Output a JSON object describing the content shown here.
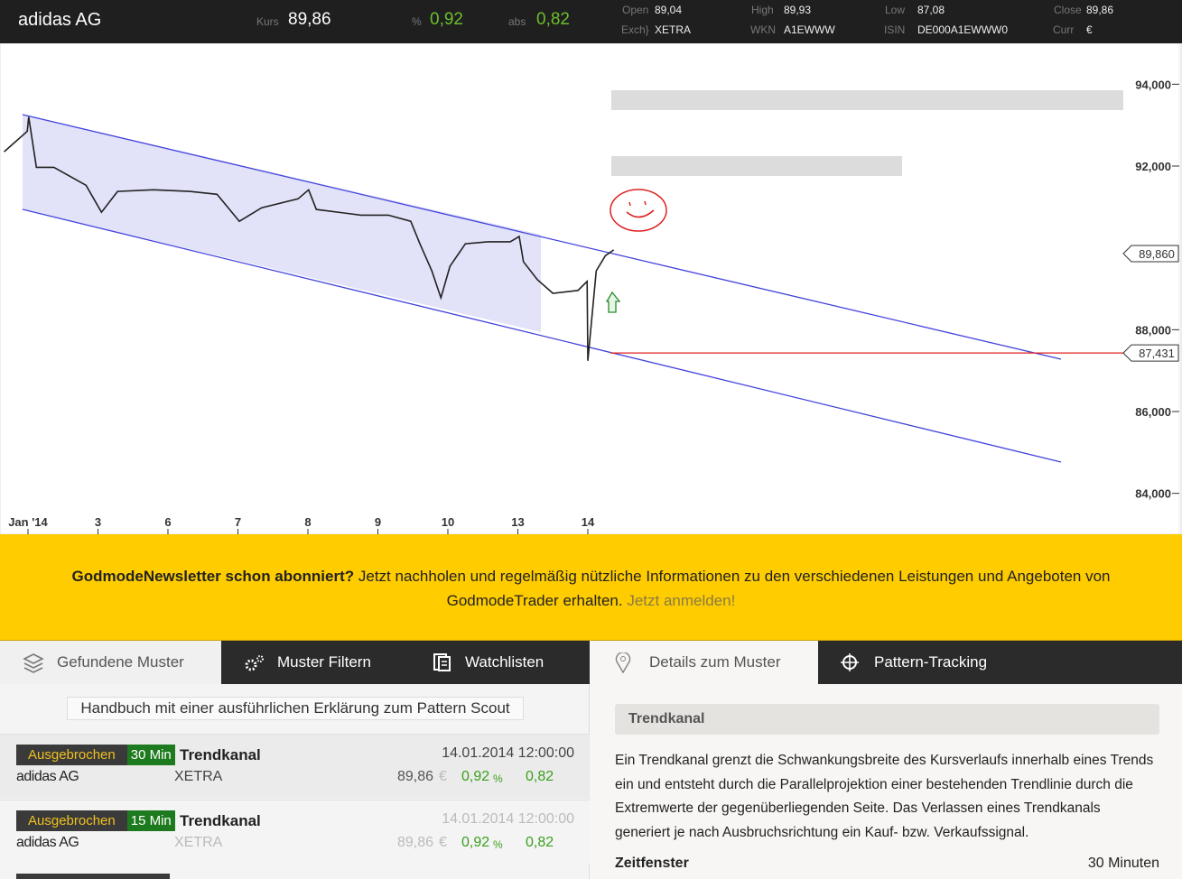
{
  "header": {
    "name": "adidas AG",
    "quote": [
      {
        "label": "Kurs",
        "value": "89,86"
      },
      {
        "label": "%",
        "value": "0,92"
      },
      {
        "label": "abs",
        "value": "0,82"
      }
    ],
    "fields": [
      {
        "label": "Open",
        "value": "89,04"
      },
      {
        "label": "Exch}",
        "value": "XETRA"
      },
      {
        "label": "High",
        "value": "89,93"
      },
      {
        "label": "WKN",
        "value": "A1EWWW"
      },
      {
        "label": "Low",
        "value": "87,08"
      },
      {
        "label": "ISIN",
        "value": "DE000A1EWWW0"
      },
      {
        "label": "Close",
        "value": "89,86"
      },
      {
        "label": "Curr",
        "value": "€"
      }
    ]
  },
  "chart_data": {
    "type": "line",
    "color": "#222222",
    "x": [
      -0.34,
      -0.01,
      0.01,
      0.12,
      0.37,
      0.83,
      1.05,
      1.28,
      1.79,
      2.31,
      2.7,
      3.02,
      3.34,
      3.86,
      4.01,
      4.12,
      4.76,
      5.15,
      5.47,
      5.6,
      5.77,
      5.9,
      6.03,
      6.25,
      6.57,
      6.89,
      7.02,
      7.08,
      7.28,
      7.5,
      7.86,
      7.99,
      8.0,
      8.12,
      8.25,
      8.37
    ],
    "values": [
      92.35,
      92.85,
      93.2,
      91.97,
      91.97,
      91.53,
      90.87,
      91.38,
      91.42,
      91.38,
      91.31,
      90.65,
      90.98,
      91.2,
      91.42,
      90.94,
      90.8,
      90.8,
      90.65,
      90.1,
      89.44,
      88.78,
      89.55,
      90.1,
      90.15,
      90.15,
      90.28,
      89.66,
      89.22,
      88.89,
      88.96,
      89.18,
      87.24,
      89.44,
      89.81,
      89.95
    ],
    "xlim": [
      -0.4,
      15.6
    ],
    "xticks": [
      {
        "value": 0,
        "label": "Jan '14"
      },
      {
        "value": 1,
        "label": "3"
      },
      {
        "value": 2,
        "label": "6"
      },
      {
        "value": 3,
        "label": "7"
      },
      {
        "value": 4,
        "label": "8"
      },
      {
        "value": 5,
        "label": "9"
      },
      {
        "value": 6,
        "label": "10"
      },
      {
        "value": 7,
        "label": "13"
      },
      {
        "value": 8,
        "label": "14"
      }
    ],
    "ylim": [
      83,
      95
    ],
    "yticks": [
      {
        "value": 84,
        "label": "84,000"
      },
      {
        "value": 86,
        "label": "86,000"
      },
      {
        "value": 88,
        "label": "88,000"
      },
      {
        "value": 92,
        "label": "92,000"
      },
      {
        "value": 94,
        "label": "94,000"
      }
    ],
    "annotations": [
      {
        "value": 89.86,
        "label": "89,860"
      },
      {
        "value": 87.431,
        "label": "87,431"
      }
    ]
  },
  "banner": {
    "bold": "GodmodeNewsletter schon abonniert?",
    "text": "Jetzt nachholen und regelmäßig nützliche Informationen zu den verschiedenen Leistungen und Angeboten von GodmodeTrader erhalten.",
    "link": "Jetzt anmelden!"
  },
  "tabs": [
    "Gefundene Muster",
    "Muster Filtern",
    "Watchlisten",
    "Details zum Muster",
    "Pattern-Tracking"
  ],
  "handbook": "Handbuch mit einer ausführlichen Erklärung zum Pattern Scout",
  "patterns": [
    {
      "status": "Ausgebrochen",
      "timeframe": "30 Min",
      "name": "Trendkanal",
      "date": "14.01.2014 12:00:00",
      "stock": "adidas AG",
      "exchange": "XETRA",
      "price": "89,86",
      "currency": "€",
      "change_pct": "0,92",
      "pct_sign": "%",
      "change_abs": "0,82"
    },
    {
      "status": "Ausgebrochen",
      "timeframe": "15 Min",
      "name": "Trendkanal",
      "date": "14.01.2014 12:00:00",
      "stock": "adidas AG",
      "exchange": "XETRA",
      "price": "89,86",
      "currency": "€",
      "change_pct": "0,92",
      "pct_sign": "%",
      "change_abs": "0,82"
    }
  ],
  "details": {
    "title": "Trendkanal",
    "description": "Ein Trendkanal grenzt die Schwankungsbreite des Kursverlaufs innerhalb eines Trends ein und entsteht durch die Parallelprojektion einer bestehenden Trendlinie durch die Extremwerte der gegenüberliegenden Seite. Das Verlassen eines Trendkanals generiert je nach Ausbruchsrichtung ein Kauf- bzw. Verkaufssignal.",
    "fields": [
      {
        "label": "Zeitfenster",
        "value": "30 Minuten"
      }
    ]
  }
}
